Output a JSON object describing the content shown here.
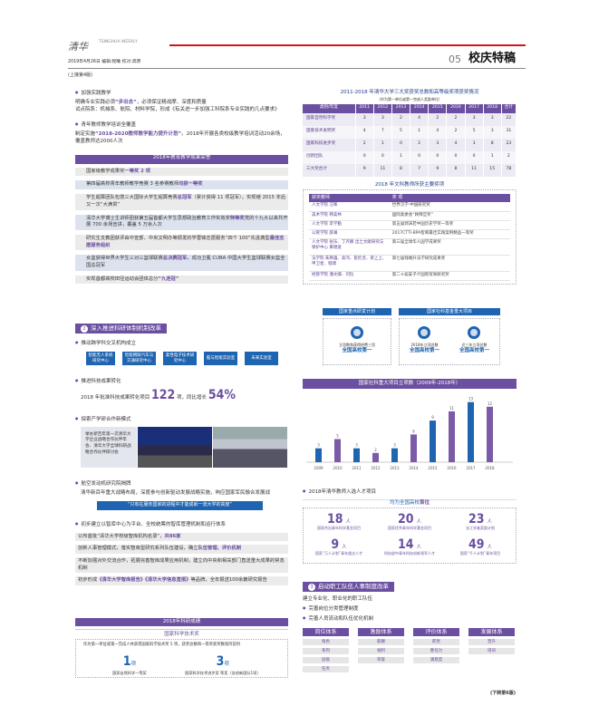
{
  "header": {
    "logo": "清华",
    "paper_en": "TSINGHUA WEEKLY",
    "dateline": "2019年4月26日  编辑:程曦  校对:高原",
    "page_no": "05",
    "section": "校庆特稿",
    "continued_from": "(上接第4版)",
    "continued_to": "(下转第6版)"
  },
  "left": {
    "b1": {
      "title": "加强实践教学",
      "l1a": "明确专业实践必须",
      "l1b": "“步出去”",
      "l1c": "，必须保证精战摩、深度和质量",
      "l2": "试点院系：机械系、航院、材料学院，形成《有关进一步加强工科院系专业实践的几点要求》"
    },
    "b2": {
      "title": "青年教师教学培训全覆盖",
      "a": "制定实施",
      "b": "“2018-2020教师教学能力提升计划”",
      "c": "。2018年开展各类校级教学培训活动20余场，覆盖教师达2000人次"
    },
    "honors": {
      "title": "2018年教育教学成果荣誉",
      "rows": [
        {
          "a": "国家级教学成果奖",
          "b": "一等奖 2 项"
        },
        {
          "a": "第四届高校青年教师教学竞赛 3 名参赛教师",
          "b": "均获一等奖"
        },
        {
          "a": "学生超算团队包揽三大国际大学生超算竞赛",
          "b": "总冠军",
          "c": "（累计获得 11 项冠军）。实现继 2015 年后又一次“大满贯”"
        },
        {
          "a": "清华大学博士生讲师团获第五届首都大学生思想政治教育工作实效奖",
          "b": "特等奖",
          "c": "党的十九大以来共开展 700 余场宣讲，覆盖 5 万余人次"
        },
        {
          "a": "研究生支教团获评由中宣部、中央文明办等颁发的学雷锋志愿服务“四个 100”先进典型",
          "b": "最佳志愿服务组织"
        },
        {
          "a": "女篮获得世界大学生三对三篮球联赛",
          "b": "总决赛冠军",
          "c": "，成功卫冕 CUBA 中国大学生篮球联赛女篮全国总冠军"
        },
        {
          "a": "实现首都高校田径运动会团体总分",
          "b": "“九连冠”"
        }
      ]
    },
    "sec2": {
      "num": "2",
      "title": "深入推进科研体制机制改革"
    },
    "b3": {
      "title": "推动跨学科交叉机构成立",
      "boxes": [
        "智能无人系统研究中心",
        "智能网联汽车与交通研究中心",
        "柔性电子技术研究中心",
        "脑与智能实验室",
        "未来实验室"
      ]
    },
    "b4": {
      "title": "推进科技成果转化",
      "a": "2018 年批准科技成果转化项目",
      "n1": "122",
      "b": "项，同比增长",
      "n2": "54%"
    },
    "b5": {
      "title": "探索产学研合作新模式",
      "text": "举办新百年第一次清华大学企业战略合作伙伴年会、清华大学全球科研战略合作伙伴研讨会"
    },
    "b6": {
      "title": "航空发动机研究院揭牌",
      "text": "清华新百年重大战略布局，深度参与创新驱动发展战略实施，响应国家军民融合发展战",
      "quote": "“只有在服务国家的进程中才能成就一流大学的高度”"
    },
    "b7": {
      "title": "初步建立以智库中心为平台、全校统筹的智库管理机制和运行体系",
      "rows": [
        {
          "a": "公布首批“清华大学校级智库机构名录”，",
          "b": "共86家"
        },
        {
          "a": "创新人事管理模式，落实智库型研究系列队伍建设，确立",
          "b": "队伍管理、评价机制"
        },
        {
          "a": "不断加强对外交流合作，拓展完善智库成果应用机制，建立向中央和相关部门直送重大成果的常态机制",
          "b": ""
        },
        {
          "a": "初步形成",
          "b": "《清华大学智库报告》《清华大学信息直报》",
          "c": "等品牌，全年报送100余篇研究报告"
        }
      ]
    },
    "research": {
      "title": "2018年科研成绩",
      "sub": "国家科学技术奖",
      "text": "作为第一单位或第一完成人共获得国家科学技术奖 5 项，获奖总数和一等奖获奖数保持前列",
      "n1": "1",
      "u1": "项",
      "l1": "国家自然科学一等奖",
      "n2": "3",
      "u2": "项",
      "l2": "国家科学技术进步奖 等奖（含创新团队1项）"
    }
  },
  "right": {
    "awards_table": {
      "title": "2011-2018 年清华大学三大奖获奖总数和高等级奖项获奖情况",
      "sub": "（作为第一单位或第一完成人奖励单位）",
      "headers": [
        "类别/年度",
        "2011",
        "2012",
        "2013",
        "2014",
        "2015",
        "2016",
        "2017",
        "2018",
        "合计"
      ],
      "rows": [
        [
          "国家自然科学奖",
          "3",
          "3",
          "2",
          "4",
          "2",
          "2",
          "3",
          "3",
          "22"
        ],
        [
          "国家技术发明奖",
          "4",
          "7",
          "5",
          "1",
          "4",
          "2",
          "5",
          "3",
          "31"
        ],
        [
          "国家科技进步奖",
          "2",
          "1",
          "0",
          "2",
          "3",
          "4",
          "3",
          "8",
          "23"
        ],
        [
          "创新团队",
          "0",
          "0",
          "1",
          "0",
          "0",
          "0",
          "0",
          "1",
          "2"
        ],
        [
          "三大奖合计",
          "9",
          "11",
          "8",
          "7",
          "9",
          "8",
          "11",
          "15",
          "78"
        ]
      ]
    },
    "humanities": {
      "title": "2018 年文科教师所获主要奖项",
      "headers": [
        "获奖教师",
        "奖 项"
      ],
      "rows": [
        [
          "人文学院 汪晖",
          "世界汉学·中国研究奖"
        ],
        [
          "美术学院 韩美林",
          "国际奥委会“顾拜旦奖”"
        ],
        [
          "人文学院 李学勤",
          "第五届郭沫若中国历史学奖一等奖"
        ],
        [
          "公管学院 薛澜",
          "2017CTTI-BPA智库最佳实践案例精品一等奖"
        ],
        [
          "人文学院 张乐、丁齐鹏 出土文献研究与保护中心 黄德宽",
          "第三届全球华人国学成果奖"
        ],
        [
          "法学院 朱慈蕴、高鸿、崔伦灵、梁上上、申卫星、程啸",
          "第七届钱端升法学研究成果奖"
        ],
        [
          "经管学院 潘文卿、司恺",
          "第二十届安子介国际贸易研究奖"
        ]
      ]
    },
    "rd": {
      "title": "国家重点研发计划",
      "text": "立项数和获得经费三项",
      "rank": "全国高校第一"
    },
    "ss": {
      "title": "国家社科基金重大项目",
      "a_text": "2018年立项总数",
      "a_rank": "全国高校第一",
      "b_text": "近三年立项总数",
      "b_rank": "全国高校第一"
    },
    "talent": {
      "title": "2018年清华教师入选人才项目",
      "sub_a": "均为全国高校",
      "sub_b": "首位",
      "unit": "人",
      "items": [
        {
          "n": "18",
          "l": "国家杰出青年科学基金项目"
        },
        {
          "n": "20",
          "l": "国家优秀青年科学基金项目"
        },
        {
          "n": "23",
          "l": "长江学者奖励计划"
        },
        {
          "n": "9",
          "l": "国家“万人计划”青年拔尖人才"
        },
        {
          "n": "14",
          "l": "科技部中青年科技创新领军人才"
        },
        {
          "n": "49",
          "l": "国家“千人计划”青年项目"
        }
      ]
    },
    "sec3": {
      "num": "3",
      "title": "启动职工队伍人事制度改革",
      "intro": "建立专业化、职业化的职工队伍",
      "b1": "完善岗位分类管理制度",
      "b2": "完善人员流动和队伍优化机制",
      "systems": [
        {
          "name": "岗位体系",
          "items": [
            "角色",
            "系列",
            "层级",
            "任务"
          ]
        },
        {
          "name": "激励体系",
          "items": [
            "薪酬",
            "福利",
            "荣誉"
          ]
        },
        {
          "name": "评价体系",
          "items": [
            "职责",
            "胜任力",
            "满意度"
          ]
        },
        {
          "name": "发展体系",
          "items": [
            "晋升",
            "培训"
          ]
        }
      ]
    }
  },
  "chart_data": {
    "type": "bar",
    "title": "国家社科重大项目立项数（2009年-2018年）",
    "categories": [
      "2009",
      "2010",
      "2011",
      "2012",
      "2013",
      "2014",
      "2015",
      "2016",
      "2017",
      "2018"
    ],
    "values": [
      3,
      5,
      3,
      2,
      3,
      6,
      9,
      11,
      13,
      12
    ],
    "colors": [
      "#1e64b0",
      "#7b5aa8"
    ],
    "ylim": [
      0,
      14
    ],
    "grid": false
  }
}
